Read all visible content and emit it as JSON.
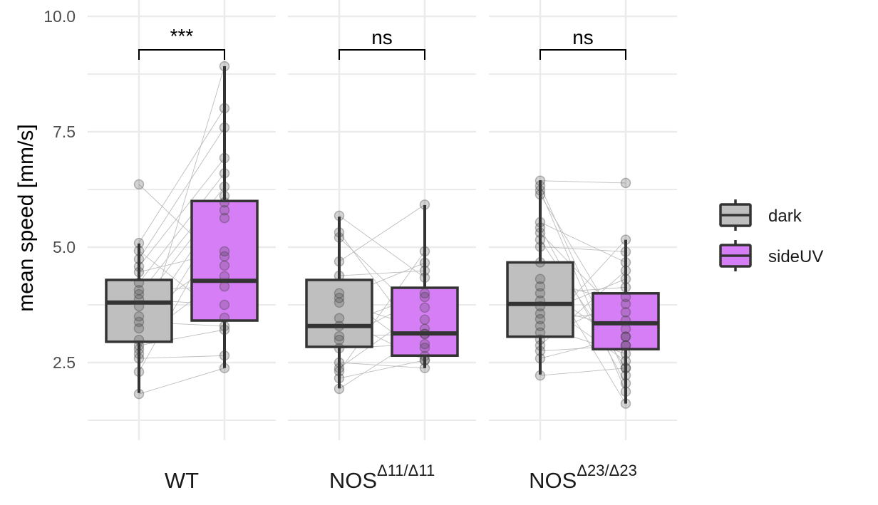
{
  "chart_data": {
    "type": "box",
    "title": "",
    "xlabel": "",
    "ylabel": "mean speed [mm/s]",
    "ylim": [
      1.0,
      10.3
    ],
    "yticks": [
      2.5,
      5.0,
      7.5,
      10.0
    ],
    "ytick_labels": [
      "2.5",
      "5.0",
      "7.5",
      "10.0"
    ],
    "grid": true,
    "legend": {
      "placement": "right",
      "entries": [
        {
          "name": "dark",
          "color": "#bfbfbf"
        },
        {
          "name": "sideUV",
          "color": "#d67ef5"
        }
      ]
    },
    "categories": [
      {
        "id": "WT",
        "base": "WT",
        "sup": ""
      },
      {
        "id": "NOS11",
        "base": "NOS",
        "sup": "Δ11/Δ11"
      },
      {
        "id": "NOS23",
        "base": "NOS",
        "sup": "Δ23/Δ23"
      }
    ],
    "significance": [
      "***",
      "ns",
      "ns"
    ],
    "panels": [
      {
        "category": "WT",
        "groups": [
          {
            "series": "dark",
            "box": {
              "q1": 2.95,
              "median": 3.8,
              "q3": 4.29,
              "whisker_low": 1.84,
              "whisker_high": 5.08
            },
            "points": [
              6.36,
              5.09,
              4.92,
              4.74,
              4.58,
              4.46,
              4.23,
              4.07,
              3.98,
              3.87,
              3.72,
              3.5,
              3.38,
              3.24,
              2.99,
              2.87,
              2.79,
              2.69,
              2.59,
              2.3,
              1.82
            ]
          },
          {
            "series": "sideUV",
            "box": {
              "q1": 3.41,
              "median": 4.27,
              "q3": 6.0,
              "whisker_low": 2.38,
              "whisker_high": 8.92
            },
            "points": [
              4.6,
              8.01,
              3.47,
              7.59,
              6.93,
              4.91,
              6.6,
              4.15,
              6.31,
              3.75,
              6.11,
              4.8,
              3.29,
              5.97,
              4.37,
              3.21,
              5.8,
              8.92,
              2.65,
              5.63,
              2.38
            ]
          }
        ]
      },
      {
        "category": "NOS11",
        "groups": [
          {
            "series": "dark",
            "box": {
              "q1": 2.84,
              "median": 3.29,
              "q3": 4.29,
              "whisker_low": 1.94,
              "whisker_high": 5.66
            },
            "points": [
              5.68,
              5.32,
              5.21,
              4.69,
              4.38,
              4.0,
              3.9,
              3.8,
              3.46,
              3.29,
              3.07,
              2.99,
              2.81,
              2.5,
              2.38,
              2.31,
              2.16,
              1.93
            ]
          },
          {
            "series": "sideUV",
            "box": {
              "q1": 2.65,
              "median": 3.13,
              "q3": 4.12,
              "whisker_low": 2.38,
              "whisker_high": 5.91
            },
            "points": [
              4.34,
              2.82,
              3.43,
              5.92,
              4.49,
              2.64,
              4.66,
              3.23,
              2.55,
              4.0,
              3.12,
              3.92,
              2.9,
              2.38,
              3.69,
              4.91,
              2.55,
              3.12
            ]
          }
        ]
      },
      {
        "category": "NOS23",
        "groups": [
          {
            "series": "dark",
            "box": {
              "q1": 3.06,
              "median": 3.77,
              "q3": 4.67,
              "whisker_low": 2.24,
              "whisker_high": 6.45
            },
            "points": [
              6.44,
              6.33,
              6.23,
              6.14,
              5.54,
              5.42,
              5.31,
              5.16,
              5.01,
              4.67,
              4.31,
              4.15,
              4.0,
              3.84,
              3.72,
              3.56,
              3.44,
              3.29,
              3.15,
              3.0,
              2.87,
              2.75,
              2.59,
              2.22
            ]
          },
          {
            "series": "sideUV",
            "box": {
              "q1": 2.79,
              "median": 3.35,
              "q3": 4.0,
              "whisker_low": 1.61,
              "whisker_high": 5.16
            },
            "points": [
              6.39,
              2.22,
              1.87,
              3.06,
              4.67,
              2.05,
              3.41,
              2.38,
              4.9,
              1.61,
              3.77,
              2.87,
              4.13,
              2.53,
              3.23,
              4.31,
              3.59,
              2.69,
              5.16,
              3.92,
              4.49,
              2.87,
              3.06,
              2.38
            ]
          }
        ]
      }
    ]
  }
}
